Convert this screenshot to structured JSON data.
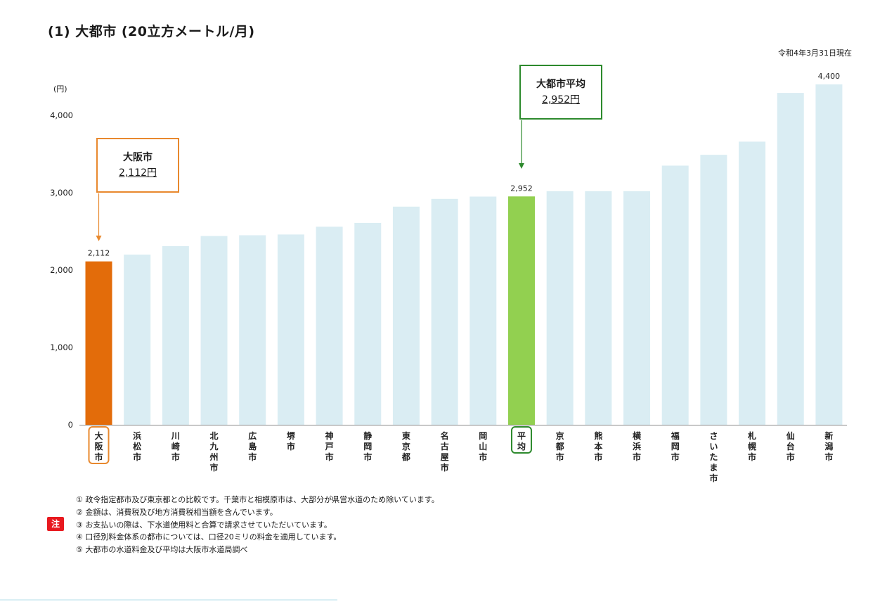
{
  "header": {
    "title": "(1) 大都市 (20立方メートル/月)",
    "date": "令和4年3月31日現在"
  },
  "callouts": {
    "osaka": {
      "label": "大阪市",
      "value": "2,112円"
    },
    "average": {
      "label": "大都市平均",
      "value": "2,952円"
    }
  },
  "notes": {
    "tag": "注",
    "items": [
      "① 政令指定都市及び東京都との比較です。千葉市と相模原市は、大部分が県営水道のため除いています。",
      "② 金額は、消費税及び地方消費税相当額を含んでいます。",
      "③ お支払いの際は、下水道使用料と合算で請求させていただいています。",
      "④ 口径別料金体系の都市については、口径20ミリの料金を適用しています。",
      "⑤ 大都市の水道料金及び平均は大阪市水道局調べ"
    ]
  },
  "colors": {
    "osaka_bar": "#e36c0a",
    "average_bar": "#92d050",
    "other_bar": "#daedf3",
    "osaka_outline": "#e8892e",
    "average_outline": "#2d8a2d"
  },
  "chart_data": {
    "type": "bar",
    "ylabel": "(円)",
    "ylim": [
      0,
      4400
    ],
    "yticks": [
      0,
      1000,
      2000,
      3000,
      4000
    ],
    "ytick_labels": [
      "0",
      "1,000",
      "2,000",
      "3,000",
      "4,000"
    ],
    "categories": [
      "大阪市",
      "浜松市",
      "川崎市",
      "北九州市",
      "広島市",
      "堺市",
      "神戸市",
      "静岡市",
      "東京都",
      "名古屋市",
      "岡山市",
      "平均",
      "京都市",
      "熊本市",
      "横浜市",
      "福岡市",
      "さいたま市",
      "札幌市",
      "仙台市",
      "新潟市"
    ],
    "values": [
      2112,
      2200,
      2310,
      2440,
      2450,
      2460,
      2560,
      2610,
      2820,
      2920,
      2950,
      2952,
      3020,
      3020,
      3020,
      3350,
      3490,
      3660,
      4290,
      4400
    ],
    "data_labels": [
      {
        "index": 0,
        "text": "2,112"
      },
      {
        "index": 11,
        "text": "2,952"
      },
      {
        "index": 19,
        "text": "4,400"
      }
    ],
    "highlight": {
      "osaka_index": 0,
      "average_index": 11
    },
    "grid": false,
    "legend": "none"
  }
}
